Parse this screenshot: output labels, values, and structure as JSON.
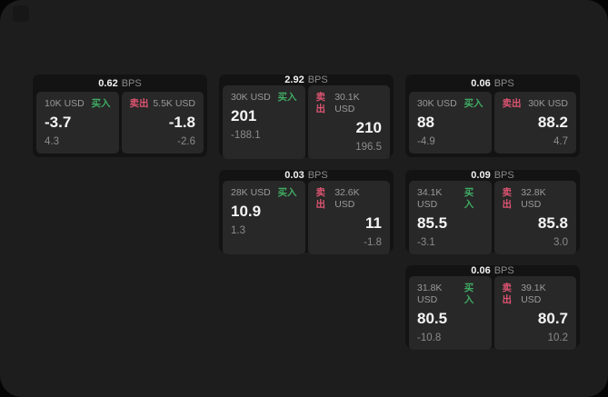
{
  "theme": {
    "outer_bg": "#050505",
    "container_bg": "#1d1d1d",
    "card_bg": "#131313",
    "panel_bg": "#282828",
    "accent_green": "#3fab63",
    "accent_red": "#dd5471",
    "text_primary": "#f5f5f5",
    "text_secondary": "#9a9a9a"
  },
  "labels": {
    "bps": "BPS",
    "buy": "买入",
    "sell": "卖出"
  },
  "cards": [
    {
      "bps": "0.62",
      "buy_amount": "10K USD",
      "sell_amount": "5.5K USD",
      "buy_value": "-3.7",
      "sell_value": "-1.8",
      "buy_sub": "4.3",
      "sell_sub": "-2.6"
    },
    {
      "bps": "2.92",
      "buy_amount": "30K USD",
      "sell_amount": "30.1K USD",
      "buy_value": "201",
      "sell_value": "210",
      "buy_sub": "-188.1",
      "sell_sub": "196.5"
    },
    {
      "bps": "0.06",
      "buy_amount": "30K USD",
      "sell_amount": "30K USD",
      "buy_value": "88",
      "sell_value": "88.2",
      "buy_sub": "-4.9",
      "sell_sub": "4.7"
    },
    {
      "bps": "0.03",
      "buy_amount": "28K USD",
      "sell_amount": "32.6K USD",
      "buy_value": "10.9",
      "sell_value": "11",
      "buy_sub": "1.3",
      "sell_sub": "-1.8"
    },
    {
      "bps": "0.09",
      "buy_amount": "34.1K USD",
      "sell_amount": "32.8K USD",
      "buy_value": "85.5",
      "sell_value": "85.8",
      "buy_sub": "-3.1",
      "sell_sub": "3.0"
    },
    {
      "bps": "0.06",
      "buy_amount": "31.8K USD",
      "sell_amount": "39.1K USD",
      "buy_value": "80.5",
      "sell_value": "80.7",
      "buy_sub": "-10.8",
      "sell_sub": "10.2"
    }
  ]
}
